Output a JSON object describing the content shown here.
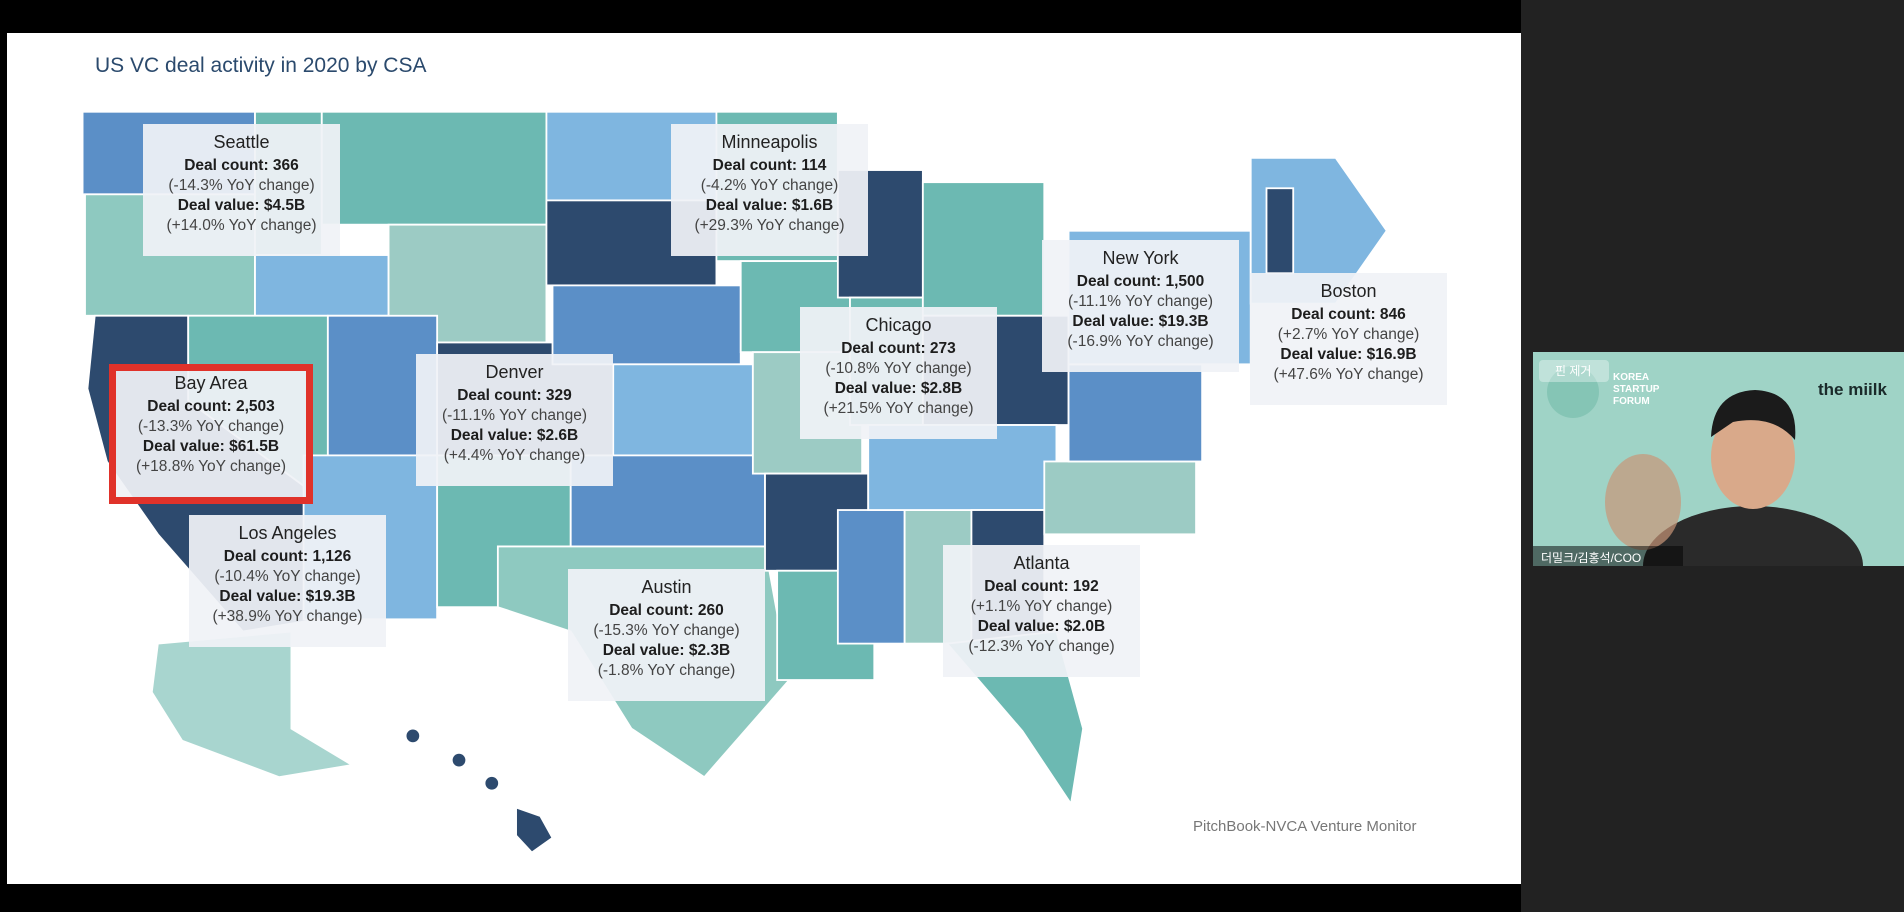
{
  "slide": {
    "title": "US VC deal activity in 2020 by CSA",
    "source": "PitchBook-NVCA Venture Monitor",
    "cities": [
      {
        "name": "Seattle",
        "lines": [
          "Deal count: 366",
          "(-14.3% YoY change)",
          "Deal value: $4.5B",
          "(+14.0% YoY change)"
        ]
      },
      {
        "name": "Minneapolis",
        "lines": [
          "Deal count: 114",
          "(-4.2% YoY change)",
          "Deal value: $1.6B",
          "(+29.3% YoY change)"
        ]
      },
      {
        "name": "New York",
        "lines": [
          "Deal count: 1,500",
          "(-11.1% YoY change)",
          "Deal value: $19.3B",
          "(-16.9% YoY change)"
        ]
      },
      {
        "name": "Boston",
        "lines": [
          "Deal count: 846",
          "(+2.7% YoY change)",
          "Deal value: $16.9B",
          "(+47.6% YoY change)"
        ]
      },
      {
        "name": "Chicago",
        "lines": [
          "Deal count: 273",
          "(-10.8% YoY change)",
          "Deal value: $2.8B",
          "(+21.5% YoY change)"
        ]
      },
      {
        "name": "Denver",
        "lines": [
          "Deal count: 329",
          "(-11.1% YoY change)",
          "Deal value: $2.6B",
          "(+4.4% YoY change)"
        ]
      },
      {
        "name": "Bay Area",
        "lines": [
          "Deal count: 2,503",
          "(-13.3% YoY change)",
          "Deal value: $61.5B",
          "(+18.8% YoY change)"
        ]
      },
      {
        "name": "Los Angeles",
        "lines": [
          "Deal count: 1,126",
          "(-10.4% YoY change)",
          "Deal value: $19.3B",
          "(+38.9% YoY change)"
        ]
      },
      {
        "name": "Austin",
        "lines": [
          "Deal count: 260",
          "(-15.3% YoY change)",
          "Deal value: $2.3B",
          "(-1.8% YoY change)"
        ]
      },
      {
        "name": "Atlanta",
        "lines": [
          "Deal count: 192",
          "(+1.1% YoY change)",
          "Deal value: $2.0B",
          "(-12.3% YoY change)"
        ]
      }
    ]
  },
  "webcam": {
    "unpin": "핀 제거",
    "org": "KOREA STARTUP FORUM",
    "brand": "the miilk",
    "participant": "더밀크/김홍석/COO"
  }
}
